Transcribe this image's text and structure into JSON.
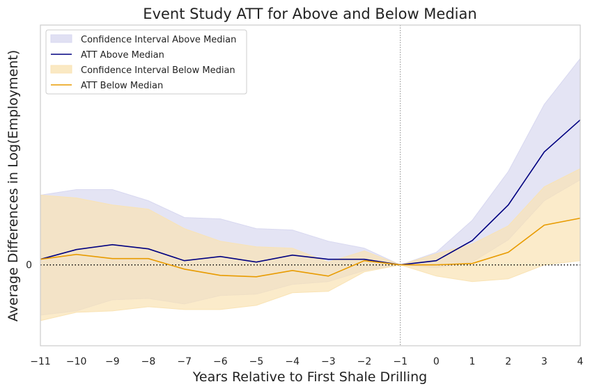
{
  "chart_data": {
    "type": "line",
    "title": "Event Study ATT for Above and Below Median",
    "xlabel": "Years Relative to First Shale Drilling",
    "ylabel": "Average Differences in Log(Employment)",
    "x": [
      -11,
      -10,
      -9,
      -8,
      -7,
      -6,
      -5,
      -4,
      -3,
      -2,
      -1,
      0,
      1,
      2,
      3,
      4
    ],
    "xlim": [
      -11,
      4
    ],
    "ylim": [
      -0.58,
      1.72
    ],
    "y_ticks": [
      0
    ],
    "y_tick_labels": [
      "0"
    ],
    "reference_lines": {
      "horizontal_y": 0,
      "vertical_x": -1
    },
    "grid": false,
    "legend_position": "top-left",
    "series": [
      {
        "name": "ATT Above Median",
        "color": "#000080",
        "values": [
          0.04,
          0.11,
          0.145,
          0.115,
          0.03,
          0.06,
          0.02,
          0.07,
          0.04,
          0.04,
          0.0,
          0.03,
          0.175,
          0.43,
          0.81,
          1.04
        ],
        "ci_name": "Confidence Interval Above Median",
        "ci_color": "#d8d8f0",
        "ci_lower": [
          -0.36,
          -0.33,
          -0.25,
          -0.24,
          -0.28,
          -0.22,
          -0.21,
          -0.14,
          -0.12,
          -0.04,
          0.0,
          -0.02,
          0.02,
          0.18,
          0.46,
          0.61
        ],
        "ci_upper": [
          0.5,
          0.54,
          0.54,
          0.46,
          0.34,
          0.33,
          0.26,
          0.25,
          0.17,
          0.12,
          0.0,
          0.09,
          0.32,
          0.67,
          1.15,
          1.48
        ]
      },
      {
        "name": "ATT Below Median",
        "color": "#e89b00",
        "values": [
          0.04,
          0.075,
          0.045,
          0.045,
          -0.03,
          -0.075,
          -0.085,
          -0.04,
          -0.08,
          0.03,
          0.0,
          0.0,
          0.01,
          0.09,
          0.285,
          0.335
        ],
        "ci_name": "Confidence Interval Below Median",
        "ci_color": "#f9e3b4",
        "ci_lower": [
          -0.4,
          -0.34,
          -0.33,
          -0.3,
          -0.32,
          -0.32,
          -0.29,
          -0.2,
          -0.19,
          -0.05,
          0.0,
          -0.08,
          -0.12,
          -0.1,
          0.0,
          0.03
        ],
        "ci_upper": [
          0.5,
          0.48,
          0.43,
          0.4,
          0.26,
          0.17,
          0.13,
          0.12,
          0.02,
          0.1,
          0.0,
          0.08,
          0.15,
          0.28,
          0.56,
          0.69
        ]
      }
    ]
  }
}
